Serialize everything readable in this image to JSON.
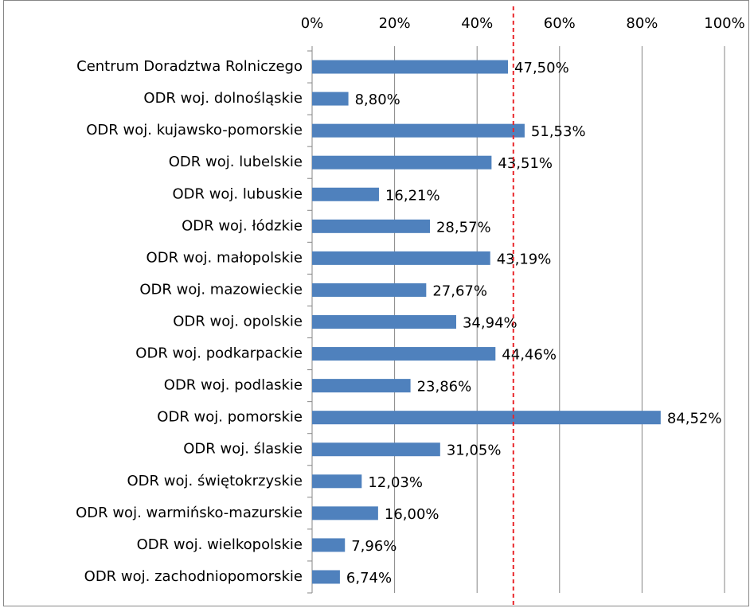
{
  "chart_data": {
    "type": "bar",
    "orientation": "horizontal",
    "categories": [
      "Centrum Doradztwa Rolniczego",
      "ODR woj. dolnośląskie",
      "ODR woj. kujawsko-pomorskie",
      "ODR woj. lubelskie",
      "ODR woj. lubuskie",
      "ODR woj. łódzkie",
      "ODR woj. małopolskie",
      "ODR woj. mazowieckie",
      "ODR woj. opolskie",
      "ODR woj. podkarpackie",
      "ODR woj. podlaskie",
      "ODR woj. pomorskie",
      "ODR woj. ślaskie",
      "ODR woj. świętokrzyskie",
      "ODR woj. warmińsko-mazurskie",
      "ODR woj. wielkopolskie",
      "ODR woj. zachodniopomorskie"
    ],
    "values": [
      47.5,
      8.8,
      51.53,
      43.51,
      16.21,
      28.57,
      43.19,
      27.67,
      34.94,
      44.46,
      23.86,
      84.52,
      31.05,
      12.03,
      16.0,
      7.96,
      6.74
    ],
    "value_labels": [
      "47,50%",
      "8,80%",
      "51,53%",
      "43,51%",
      "16,21%",
      "28,57%",
      "43,19%",
      "27,67%",
      "34,94%",
      "44,46%",
      "23,86%",
      "84,52%",
      "31,05%",
      "12,03%",
      "16,00%",
      "7,96%",
      "6,74%"
    ],
    "color": "#4f81bd",
    "xlim": [
      0,
      100
    ],
    "xticks": [
      {
        "value": 0,
        "label": "0%"
      },
      {
        "value": 20,
        "label": "20%"
      },
      {
        "value": 40,
        "label": "40%"
      },
      {
        "value": 60,
        "label": "60%"
      },
      {
        "value": 80,
        "label": "80%"
      },
      {
        "value": 100,
        "label": "100%"
      }
    ],
    "grid": true,
    "reference_line": {
      "value": 48.8,
      "color": "#e8262a"
    }
  }
}
